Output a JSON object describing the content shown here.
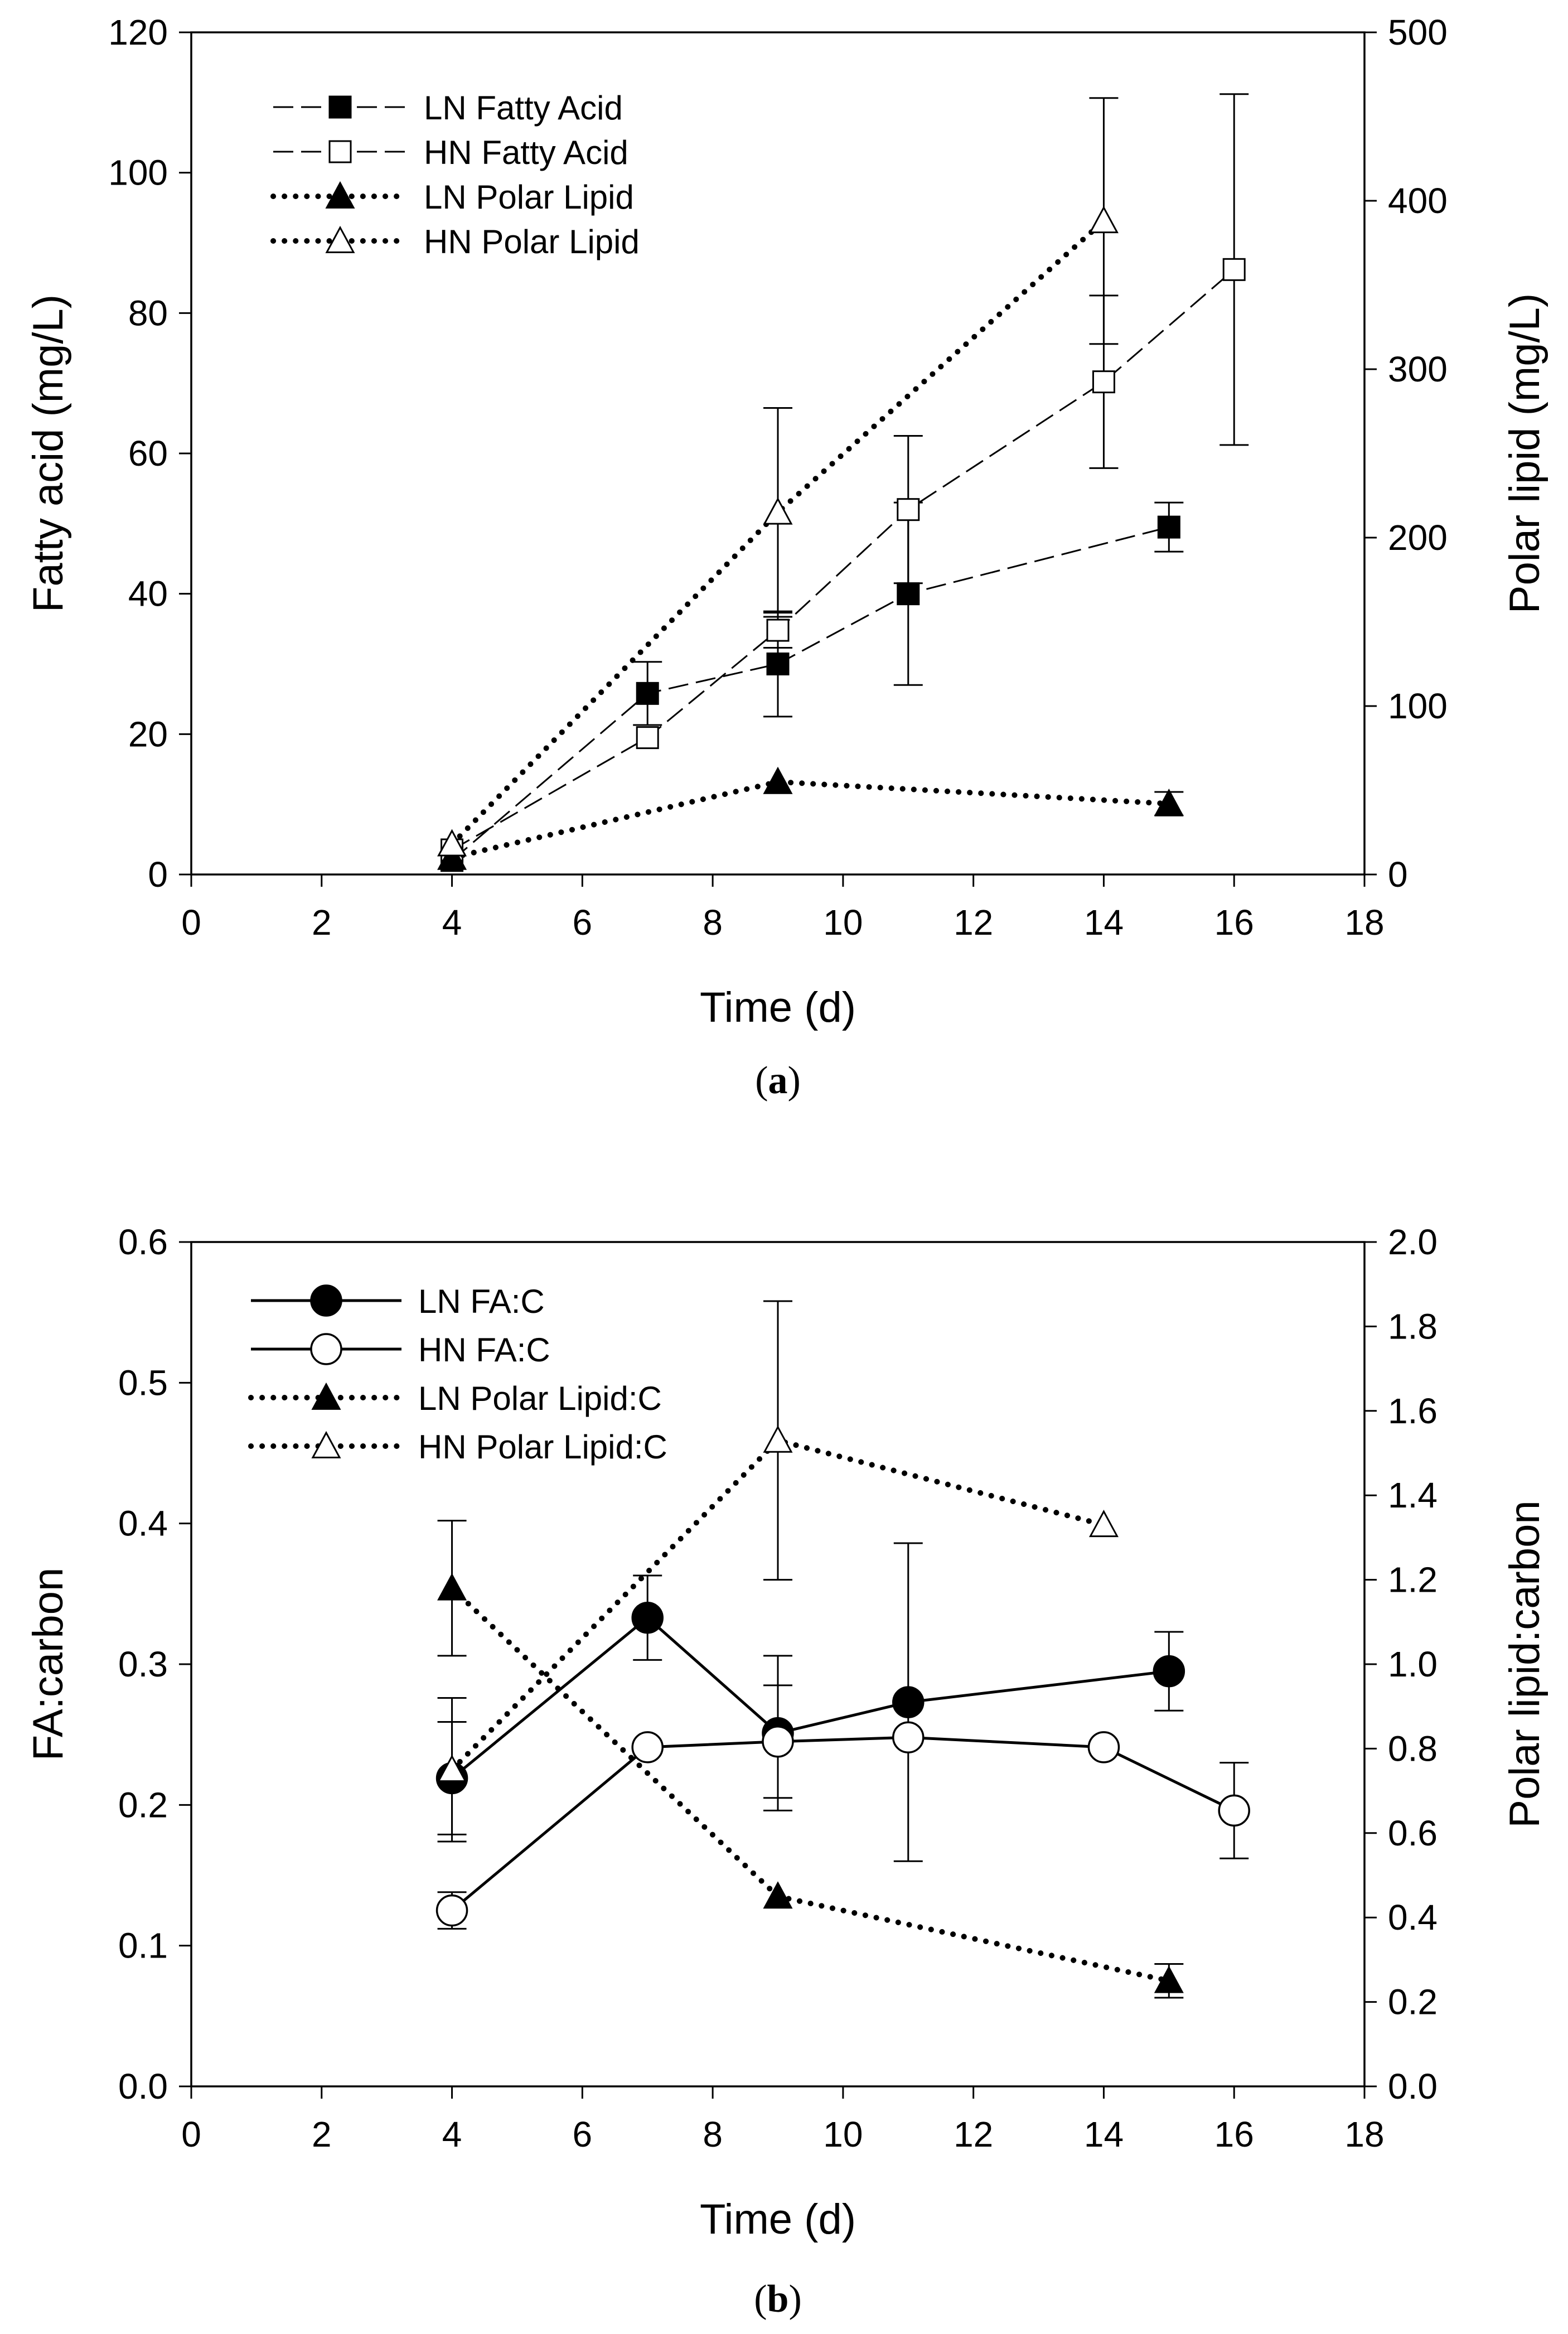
{
  "chart_data": [
    {
      "panel": "(a)",
      "panel_letter": "a",
      "type": "line",
      "title": "",
      "xlabel": "Time (d)",
      "ylabel": "Fatty acid (mg/L)",
      "y2label": "Polar lipid (mg/L)",
      "xlim": [
        0,
        18
      ],
      "ylim": [
        0,
        120
      ],
      "y2lim": [
        0,
        500
      ],
      "xticks": [
        0,
        2,
        4,
        6,
        8,
        10,
        12,
        14,
        16,
        18
      ],
      "yticks": [
        0,
        20,
        40,
        60,
        80,
        100,
        120
      ],
      "y2ticks": [
        0,
        100,
        200,
        300,
        400,
        500
      ],
      "legend_position": "top-left",
      "series": [
        {
          "name": "LN Fatty Acid",
          "axis": "left",
          "line": "dashed",
          "marker": "square",
          "filled": true,
          "x": [
            4,
            7,
            9,
            11,
            15
          ],
          "y": [
            2,
            25.8,
            30,
            40,
            49.5
          ],
          "err": [
            0,
            4.5,
            7.5,
            13,
            3.5
          ]
        },
        {
          "name": "HN Fatty Acid",
          "axis": "left",
          "line": "dashed",
          "marker": "square",
          "filled": false,
          "x": [
            4,
            7,
            9,
            11,
            14,
            16
          ],
          "y": [
            3.5,
            19.5,
            34.8,
            52,
            70.2,
            86.2
          ],
          "err": [
            0,
            0,
            2.5,
            10.5,
            12.3,
            25
          ]
        },
        {
          "name": "LN Polar Lipid",
          "axis": "right",
          "line": "dotted",
          "marker": "triangle",
          "filled": true,
          "x": [
            4,
            9,
            15
          ],
          "y": [
            10,
            55,
            42
          ],
          "err": [
            0,
            0,
            7
          ]
        },
        {
          "name": "HN Polar Lipid",
          "axis": "right",
          "line": "dotted",
          "marker": "triangle",
          "filled": false,
          "x": [
            4,
            9,
            14
          ],
          "y": [
            18,
            215,
            388
          ],
          "err": [
            0,
            62,
            73
          ]
        }
      ]
    },
    {
      "panel": "(b)",
      "panel_letter": "b",
      "type": "line",
      "title": "",
      "xlabel": "Time (d)",
      "ylabel": "FA:carbon",
      "y2label": "Polar lipid:carbon",
      "xlim": [
        0,
        18
      ],
      "ylim": [
        0,
        0.6
      ],
      "y2lim": [
        0,
        2.0
      ],
      "xticks": [
        0,
        2,
        4,
        6,
        8,
        10,
        12,
        14,
        16,
        18
      ],
      "yticks": [
        "0.0",
        "0.1",
        "0.2",
        "0.3",
        "0.4",
        "0.5",
        "0.6"
      ],
      "y2ticks": [
        "0.0",
        "0.2",
        "0.4",
        "0.6",
        "0.8",
        "1.0",
        "1.2",
        "1.4",
        "1.6",
        "1.8",
        "2.0"
      ],
      "legend_position": "top-left",
      "series": [
        {
          "name": "LN FA:C",
          "axis": "left",
          "line": "solid",
          "marker": "circle",
          "filled": true,
          "x": [
            4,
            7,
            9,
            11,
            15
          ],
          "y": [
            0.219,
            0.333,
            0.251,
            0.273,
            0.295
          ],
          "err": [
            0.04,
            0.03,
            0.055,
            0.113,
            0.028
          ]
        },
        {
          "name": "HN FA:C",
          "axis": "left",
          "line": "solid",
          "marker": "circle",
          "filled": false,
          "x": [
            4,
            7,
            9,
            11,
            14,
            16
          ],
          "y": [
            0.125,
            0.241,
            0.245,
            0.248,
            0.241,
            0.196
          ],
          "err": [
            0.013,
            0,
            0.04,
            0,
            0,
            0.034
          ]
        },
        {
          "name": "LN Polar Lipid:C",
          "axis": "right",
          "line": "dotted",
          "marker": "triangle",
          "filled": true,
          "x": [
            4,
            9,
            15
          ],
          "y": [
            1.18,
            0.45,
            0.25
          ],
          "err": [
            0.16,
            0,
            0.04
          ]
        },
        {
          "name": "HN Polar Lipid:C",
          "axis": "right",
          "line": "dotted",
          "marker": "triangle",
          "filled": false,
          "x": [
            4,
            9,
            14
          ],
          "y": [
            0.75,
            1.53,
            1.33
          ],
          "err": [
            0.17,
            0.33,
            0
          ]
        }
      ]
    }
  ]
}
